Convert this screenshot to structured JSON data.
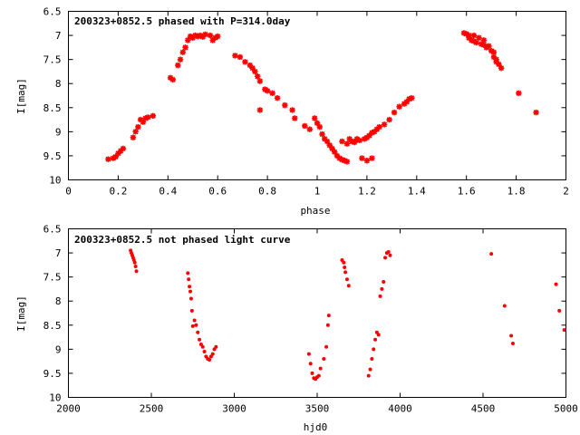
{
  "chart_data": [
    {
      "type": "scatter",
      "title": "200323+0852.5 phased with P=314.0day",
      "xlabel": "phase",
      "ylabel": "I[mag]",
      "xlim": [
        0,
        2
      ],
      "ylim": [
        10,
        6.5
      ],
      "y_inverted": true,
      "xticks": [
        0,
        0.2,
        0.4,
        0.6,
        0.8,
        1,
        1.2,
        1.4,
        1.6,
        1.8,
        2
      ],
      "xtick_labels": [
        "0",
        "0.2",
        "0.4",
        "0.6",
        "0.8",
        "1",
        "1.2",
        "1.4",
        "1.6",
        "1.8",
        "2"
      ],
      "yticks": [
        6.5,
        7,
        7.5,
        8,
        8.5,
        9,
        9.5,
        10
      ],
      "ytick_labels": [
        "6.5",
        "7",
        "7.5",
        "8",
        "8.5",
        "9",
        "9.5",
        "10"
      ],
      "grid": false,
      "marker_color": "#ff0000",
      "series": [
        {
          "x": [
            0.16,
            0.18,
            0.19,
            0.2,
            0.21,
            0.22,
            0.26,
            0.27,
            0.28,
            0.29,
            0.3,
            0.31,
            0.32,
            0.34,
            0.41,
            0.42,
            0.44,
            0.45,
            0.46,
            0.47,
            0.48,
            0.49,
            0.5,
            0.51,
            0.52,
            0.53,
            0.54,
            0.55,
            0.57,
            0.58,
            0.59,
            0.6,
            0.67,
            0.69,
            0.71,
            0.73,
            0.74,
            0.75,
            0.76,
            0.77,
            0.79,
            0.8,
            0.82,
            0.84,
            0.87,
            0.9,
            0.91,
            0.95,
            0.97,
            0.99,
            1.0,
            1.01,
            1.02,
            1.03,
            1.04,
            1.05,
            1.06,
            1.07,
            1.08,
            1.09,
            1.1,
            1.11,
            1.12,
            1.13,
            1.14,
            1.15,
            1.17,
            1.19,
            1.2,
            1.21,
            1.22,
            1.23,
            1.24,
            1.25,
            1.27,
            1.29,
            1.31,
            1.33,
            1.35,
            1.36,
            1.37,
            1.38
          ],
          "y": [
            9.57,
            9.55,
            9.52,
            9.45,
            9.4,
            9.35,
            9.12,
            9.0,
            8.9,
            8.75,
            8.8,
            8.72,
            8.7,
            8.67,
            7.88,
            7.92,
            7.62,
            7.5,
            7.35,
            7.25,
            7.1,
            7.02,
            7.05,
            7.0,
            7.02,
            7.0,
            7.03,
            6.98,
            7.0,
            7.1,
            7.05,
            7.02,
            7.42,
            7.45,
            7.55,
            7.62,
            7.68,
            7.75,
            7.85,
            7.95,
            8.12,
            8.15,
            8.2,
            8.3,
            8.45,
            8.55,
            8.72,
            8.88,
            8.95,
            8.72,
            8.82,
            8.9,
            9.05,
            9.15,
            9.2,
            9.28,
            9.35,
            9.42,
            9.5,
            9.55,
            9.58,
            9.6,
            9.62,
            9.15,
            9.2,
            9.22,
            9.18,
            9.15,
            9.12,
            9.08,
            9.02,
            9.0,
            8.95,
            8.9,
            8.85,
            8.75,
            8.6,
            8.48,
            8.42,
            8.38,
            8.32,
            8.3
          ]
        },
        {
          "x": [
            1.59,
            1.6,
            1.61,
            1.61,
            1.62,
            1.63,
            1.63,
            1.64,
            1.65,
            1.66,
            1.67,
            1.67,
            1.68,
            1.69,
            1.7,
            1.71,
            1.71,
            1.72,
            1.72,
            1.73,
            1.74,
            1.81,
            1.88,
            1.1,
            1.12,
            1.14,
            1.16,
            1.18,
            1.2,
            1.22,
            0.77
          ],
          "y": [
            6.95,
            6.97,
            7.0,
            7.05,
            7.1,
            7.0,
            7.12,
            7.15,
            7.05,
            7.18,
            7.2,
            7.1,
            7.25,
            7.22,
            7.32,
            7.35,
            7.45,
            7.5,
            7.55,
            7.6,
            7.68,
            8.2,
            8.6,
            9.2,
            9.25,
            9.2,
            9.15,
            9.55,
            9.6,
            9.55,
            8.55
          ]
        }
      ]
    },
    {
      "type": "scatter",
      "title": "200323+0852.5 not phased light curve",
      "xlabel": "hjd0",
      "ylabel": "I[mag]",
      "xlim": [
        2000,
        5000
      ],
      "ylim": [
        10,
        6.5
      ],
      "y_inverted": true,
      "xticks": [
        2000,
        2500,
        3000,
        3500,
        4000,
        4500,
        5000
      ],
      "xtick_labels": [
        "2000",
        "2500",
        "3000",
        "3500",
        "4000",
        "4500",
        "5000"
      ],
      "yticks": [
        6.5,
        7,
        7.5,
        8,
        8.5,
        9,
        9.5,
        10
      ],
      "ytick_labels": [
        "6.5",
        "7",
        "7.5",
        "8",
        "8.5",
        "9",
        "9.5",
        "10"
      ],
      "grid": false,
      "marker_color": "#ff0000",
      "series": [
        {
          "x": [
            2375,
            2380,
            2385,
            2390,
            2395,
            2400,
            2405,
            2410,
            2720,
            2725,
            2730,
            2735,
            2740,
            2745,
            2750,
            2760,
            2770,
            2780,
            2790,
            2800,
            2810,
            2820,
            2830,
            2840,
            2850,
            2860,
            2870,
            2880,
            2890,
            3450,
            3460,
            3470,
            3480,
            3490,
            3500,
            3510,
            3520,
            3540,
            3555,
            3565,
            3570,
            3650,
            3660,
            3665,
            3670,
            3680,
            3690,
            3810,
            3820,
            3830,
            3840,
            3850,
            3860,
            3870,
            3880,
            3890,
            3900,
            3910,
            3920,
            3930,
            3940,
            4550,
            4630,
            4670,
            4680,
            4940,
            4960,
            4990
          ],
          "y": [
            6.95,
            7.0,
            7.05,
            7.1,
            7.15,
            7.2,
            7.28,
            7.38,
            7.42,
            7.55,
            7.7,
            7.8,
            7.95,
            8.2,
            8.52,
            8.4,
            8.5,
            8.65,
            8.8,
            8.9,
            8.95,
            9.05,
            9.15,
            9.2,
            9.22,
            9.15,
            9.1,
            9.0,
            8.95,
            9.1,
            9.3,
            9.5,
            9.6,
            9.62,
            9.58,
            9.55,
            9.4,
            9.2,
            8.95,
            8.5,
            8.3,
            7.15,
            7.2,
            7.3,
            7.4,
            7.55,
            7.68,
            9.55,
            9.42,
            9.2,
            9.0,
            8.8,
            8.65,
            8.7,
            7.9,
            7.75,
            7.6,
            7.1,
            7.0,
            6.98,
            7.05,
            7.02,
            8.1,
            8.72,
            8.88,
            7.65,
            8.2,
            8.6
          ]
        }
      ]
    }
  ]
}
